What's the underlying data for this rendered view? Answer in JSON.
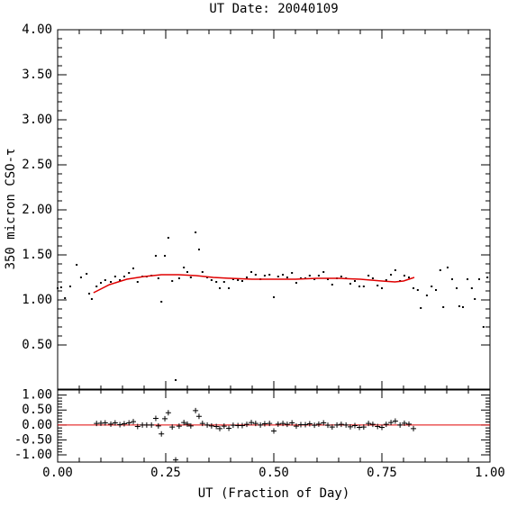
{
  "chart_data": [
    {
      "type": "scatter",
      "title": "UT Date: 20040109",
      "ylabel": "350 micron CSO-τ",
      "xlim": [
        0,
        1
      ],
      "ylim": [
        0,
        4
      ],
      "yticks": [
        {
          "value": 0.5,
          "label": "0.50"
        },
        {
          "value": 1,
          "label": "1.00"
        },
        {
          "value": 1.5,
          "label": "1.50"
        },
        {
          "value": 2,
          "label": "2.00"
        },
        {
          "value": 2.5,
          "label": "2.50"
        },
        {
          "value": 3,
          "label": "3.00"
        },
        {
          "value": 3.5,
          "label": "3.50"
        },
        {
          "value": 4,
          "label": "4.00"
        }
      ],
      "series": [
        {
          "kind": "points",
          "color": "#000000",
          "x": [
            0.0,
            0.008,
            0.017,
            0.029,
            0.044,
            0.054,
            0.067,
            0.073,
            0.079,
            0.09,
            0.1,
            0.11,
            0.123,
            0.133,
            0.144,
            0.154,
            0.165,
            0.175,
            0.185,
            0.196,
            0.206,
            0.217,
            0.227,
            0.233,
            0.24,
            0.248,
            0.256,
            0.265,
            0.273,
            0.281,
            0.292,
            0.3,
            0.308,
            0.319,
            0.327,
            0.335,
            0.346,
            0.356,
            0.367,
            0.375,
            0.385,
            0.396,
            0.406,
            0.417,
            0.427,
            0.4375,
            0.448,
            0.458,
            0.469,
            0.479,
            0.49,
            0.5,
            0.51,
            0.521,
            0.531,
            0.542,
            0.552,
            0.5625,
            0.573,
            0.583,
            0.594,
            0.604,
            0.615,
            0.625,
            0.635,
            0.646,
            0.656,
            0.667,
            0.677,
            0.6875,
            0.698,
            0.708,
            0.719,
            0.729,
            0.74,
            0.75,
            0.76,
            0.771,
            0.781,
            0.792,
            0.802,
            0.8125,
            0.823,
            0.833,
            0.84,
            0.854,
            0.865,
            0.875,
            0.885,
            0.892,
            0.902,
            0.9125,
            0.923,
            0.929,
            0.9375,
            0.948,
            0.958,
            0.965,
            0.975,
            0.985,
            0.994
          ],
          "values": [
            1.13,
            1.14,
            1.02,
            1.15,
            1.39,
            1.25,
            1.29,
            1.07,
            1.01,
            1.15,
            1.19,
            1.22,
            1.2,
            1.26,
            1.22,
            1.26,
            1.3,
            1.35,
            1.2,
            1.26,
            1.26,
            1.27,
            1.49,
            1.24,
            0.98,
            1.49,
            1.69,
            1.21,
            0.11,
            1.24,
            1.36,
            1.31,
            1.25,
            1.75,
            1.56,
            1.31,
            1.25,
            1.22,
            1.2,
            1.13,
            1.2,
            1.13,
            1.23,
            1.22,
            1.21,
            1.25,
            1.31,
            1.28,
            1.23,
            1.27,
            1.28,
            1.03,
            1.26,
            1.28,
            1.25,
            1.3,
            1.19,
            1.24,
            1.24,
            1.27,
            1.23,
            1.27,
            1.31,
            1.23,
            1.17,
            1.24,
            1.26,
            1.24,
            1.18,
            1.21,
            1.15,
            1.15,
            1.27,
            1.24,
            1.16,
            1.13,
            1.22,
            1.28,
            1.33,
            1.21,
            1.27,
            1.25,
            1.13,
            1.11,
            0.91,
            1.05,
            1.15,
            1.11,
            1.33,
            0.92,
            1.36,
            1.23,
            1.13,
            0.93,
            0.92,
            1.23,
            1.13,
            1.01,
            1.23,
            0.7,
            1.25
          ]
        },
        {
          "kind": "line",
          "color": "#e00000",
          "x": [
            0.083,
            0.12,
            0.16,
            0.2,
            0.24,
            0.28,
            0.32,
            0.36,
            0.4,
            0.45,
            0.5,
            0.55,
            0.6,
            0.65,
            0.7,
            0.75,
            0.78,
            0.8,
            0.825
          ],
          "values": [
            1.08,
            1.17,
            1.23,
            1.26,
            1.28,
            1.28,
            1.27,
            1.25,
            1.24,
            1.23,
            1.23,
            1.23,
            1.24,
            1.24,
            1.23,
            1.21,
            1.2,
            1.21,
            1.25
          ]
        }
      ]
    },
    {
      "type": "scatter",
      "xlabel": "UT (Fraction of Day)",
      "xlim": [
        0,
        1
      ],
      "ylim": [
        -1.24,
        1.2
      ],
      "xticks": [
        {
          "value": 0,
          "label": "0.00"
        },
        {
          "value": 0.25,
          "label": "0.25"
        },
        {
          "value": 0.5,
          "label": "0.50"
        },
        {
          "value": 0.75,
          "label": "0.75"
        },
        {
          "value": 1,
          "label": "1.00"
        }
      ],
      "yticks": [
        {
          "value": -1,
          "label": "-1.00"
        },
        {
          "value": -0.5,
          "label": "-0.50"
        },
        {
          "value": 0,
          "label": "0.00"
        },
        {
          "value": 0.5,
          "label": "0.50"
        },
        {
          "value": 1,
          "label": "1.00"
        }
      ],
      "hline": 0,
      "hline_color": "#e00000",
      "series": [
        {
          "kind": "plus",
          "color": "#000000",
          "x": [
            0.09,
            0.1,
            0.11,
            0.123,
            0.133,
            0.144,
            0.154,
            0.165,
            0.175,
            0.185,
            0.196,
            0.206,
            0.217,
            0.227,
            0.233,
            0.24,
            0.248,
            0.256,
            0.265,
            0.273,
            0.281,
            0.292,
            0.3,
            0.308,
            0.319,
            0.327,
            0.335,
            0.346,
            0.356,
            0.367,
            0.375,
            0.385,
            0.396,
            0.406,
            0.417,
            0.427,
            0.4375,
            0.448,
            0.458,
            0.469,
            0.479,
            0.49,
            0.5,
            0.51,
            0.521,
            0.531,
            0.542,
            0.552,
            0.5625,
            0.573,
            0.583,
            0.594,
            0.604,
            0.615,
            0.625,
            0.635,
            0.646,
            0.656,
            0.667,
            0.677,
            0.6875,
            0.698,
            0.708,
            0.719,
            0.729,
            0.74,
            0.75,
            0.76,
            0.771,
            0.781,
            0.792,
            0.802,
            0.8125,
            0.823
          ],
          "values": [
            0.05,
            0.06,
            0.07,
            0.03,
            0.07,
            0.01,
            0.04,
            0.07,
            0.11,
            -0.05,
            0.0,
            0.0,
            0.0,
            0.22,
            -0.03,
            -0.3,
            0.21,
            0.41,
            -0.07,
            -1.17,
            -0.04,
            0.08,
            0.03,
            -0.03,
            0.48,
            0.29,
            0.05,
            0.0,
            -0.03,
            -0.05,
            -0.12,
            -0.04,
            -0.11,
            -0.01,
            -0.02,
            -0.02,
            0.02,
            0.08,
            0.05,
            0.0,
            0.04,
            0.05,
            -0.2,
            0.03,
            0.05,
            0.02,
            0.07,
            -0.04,
            0.01,
            0.01,
            0.04,
            -0.01,
            0.03,
            0.07,
            -0.01,
            -0.07,
            0.0,
            0.02,
            0.0,
            -0.06,
            -0.02,
            -0.08,
            -0.07,
            0.05,
            0.02,
            -0.05,
            -0.08,
            0.02,
            0.08,
            0.13,
            0.0,
            0.06,
            0.03,
            -0.12
          ]
        }
      ]
    }
  ]
}
